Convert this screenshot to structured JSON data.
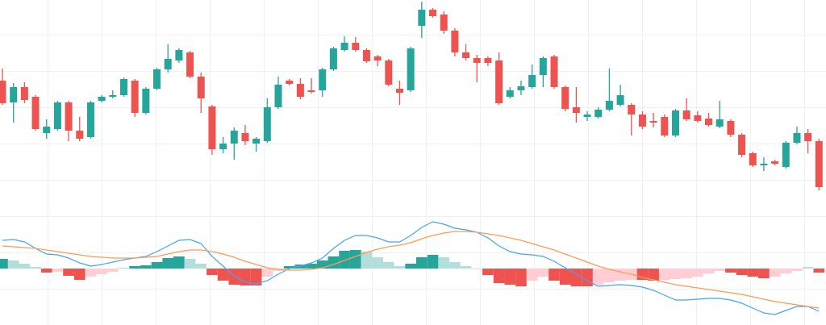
{
  "chart_data": [
    {
      "type": "candlestick",
      "up_color": "#26a69a",
      "down_color": "#ef5350",
      "ylim": [
        5,
        250
      ],
      "open": [
        150,
        123,
        142,
        130,
        85,
        90,
        123,
        88,
        80,
        125,
        130,
        132,
        150,
        110,
        140,
        164,
        175,
        185,
        155,
        118,
        65,
        72,
        85,
        72,
        75,
        117,
        150,
        146,
        138,
        138,
        164,
        188,
        197,
        188,
        180,
        175,
        140,
        138,
        218,
        238,
        232,
        212,
        185,
        178,
        178,
        175,
        130,
        138,
        142,
        157,
        180,
        142,
        117,
        105,
        105,
        114,
        120,
        120,
        108,
        100,
        105,
        82,
        113,
        107,
        103,
        93,
        100,
        83,
        60,
        45,
        50,
        43,
        73,
        85,
        75
      ],
      "high": [
        165,
        147,
        148,
        132,
        102,
        125,
        125,
        105,
        125,
        132,
        138,
        154,
        152,
        142,
        166,
        195,
        190,
        187,
        160,
        120,
        80,
        92,
        95,
        80,
        128,
        155,
        152,
        153,
        153,
        166,
        192,
        205,
        204,
        190,
        182,
        177,
        150,
        192,
        248,
        240,
        236,
        215,
        195,
        182,
        180,
        185,
        142,
        150,
        170,
        180,
        182,
        144,
        142,
        112,
        117,
        165,
        145,
        122,
        112,
        110,
        108,
        115,
        128,
        112,
        110,
        125,
        102,
        85,
        62,
        55,
        52,
        75,
        93,
        90,
        78
      ],
      "low": [
        120,
        98,
        122,
        88,
        78,
        88,
        75,
        75,
        78,
        123,
        128,
        130,
        105,
        108,
        138,
        160,
        172,
        153,
        110,
        58,
        60,
        52,
        70,
        62,
        73,
        115,
        144,
        127,
        134,
        130,
        162,
        186,
        186,
        172,
        168,
        143,
        120,
        136,
        203,
        228,
        208,
        180,
        175,
        148,
        168,
        120,
        128,
        132,
        140,
        142,
        140,
        112,
        98,
        100,
        103,
        112,
        118,
        82,
        90,
        92,
        80,
        80,
        100,
        98,
        93,
        91,
        80,
        55,
        43,
        38,
        45,
        41,
        71,
        60,
        14
      ],
      "close": [
        122,
        142,
        126,
        90,
        93,
        123,
        88,
        78,
        123,
        130,
        132,
        152,
        110,
        140,
        164,
        177,
        188,
        155,
        128,
        65,
        72,
        88,
        75,
        78,
        117,
        145,
        146,
        130,
        136,
        164,
        190,
        197,
        188,
        174,
        175,
        145,
        135,
        190,
        238,
        230,
        212,
        185,
        178,
        172,
        172,
        122,
        138,
        143,
        157,
        178,
        142,
        115,
        110,
        108,
        114,
        125,
        132,
        108,
        93,
        98,
        82,
        113,
        102,
        100,
        95,
        102,
        83,
        58,
        45,
        47,
        47,
        73,
        85,
        75,
        18
      ]
    },
    {
      "type": "macd",
      "ylim": [
        -70,
        78
      ],
      "histogram": [
        12,
        10,
        6,
        2,
        -5,
        -4,
        -9,
        -14,
        -10,
        -7,
        -4,
        1,
        3,
        4,
        8,
        13,
        15,
        12,
        6,
        -8,
        -15,
        -20,
        -21,
        -21,
        -10,
        -3,
        3,
        5,
        6,
        10,
        15,
        22,
        23,
        21,
        14,
        8,
        3,
        6,
        14,
        17,
        14,
        8,
        3,
        -1,
        -8,
        -18,
        -20,
        -22,
        -15,
        -10,
        -15,
        -20,
        -22,
        -22,
        -20,
        -17,
        -15,
        -14,
        -14,
        -15,
        -14,
        -13,
        -12,
        -10,
        -6,
        -3,
        -5,
        -8,
        -10,
        -12,
        -10,
        -6,
        -3,
        2,
        -5
      ],
      "histogram_colors": [
        "#26a69a",
        "#b2dfdb",
        "#ef5350",
        "#ffcdd2"
      ],
      "series": [
        {
          "color": "#42a5f5",
          "values": [
            35,
            36,
            33,
            25,
            18,
            17,
            13,
            7,
            3,
            5,
            8,
            11,
            13,
            15,
            21,
            28,
            35,
            36,
            31,
            15,
            3,
            -9,
            -17,
            -19,
            -15,
            -7,
            0,
            3,
            7,
            13,
            25,
            35,
            41,
            41,
            38,
            33,
            33,
            41,
            51,
            58,
            55,
            50,
            48,
            45,
            38,
            28,
            21,
            18,
            17,
            15,
            9,
            1,
            -7,
            -15,
            -22,
            -21,
            -20,
            -21,
            -23,
            -27,
            -33,
            -39,
            -39,
            -38,
            -37,
            -37,
            -39,
            -43,
            -49,
            -55,
            -57,
            -52,
            -47,
            -47,
            -53
          ]
        },
        {
          "color": "#ff9a52",
          "values": [
            28,
            27,
            26,
            25,
            23,
            21,
            19,
            17,
            15,
            14,
            13,
            13,
            13,
            14,
            15,
            18,
            21,
            23,
            23,
            21,
            18,
            14,
            9,
            5,
            1,
            -1,
            -2,
            -2,
            -1,
            1,
            5,
            10,
            15,
            20,
            24,
            27,
            29,
            32,
            37,
            41,
            44,
            46,
            46,
            45,
            43,
            41,
            38,
            35,
            31,
            27,
            23,
            18,
            13,
            8,
            3,
            -1,
            -4,
            -7,
            -11,
            -14,
            -17,
            -20,
            -22,
            -24,
            -26,
            -28,
            -30,
            -32,
            -35,
            -38,
            -41,
            -43,
            -45,
            -47,
            -49
          ]
        }
      ]
    }
  ]
}
